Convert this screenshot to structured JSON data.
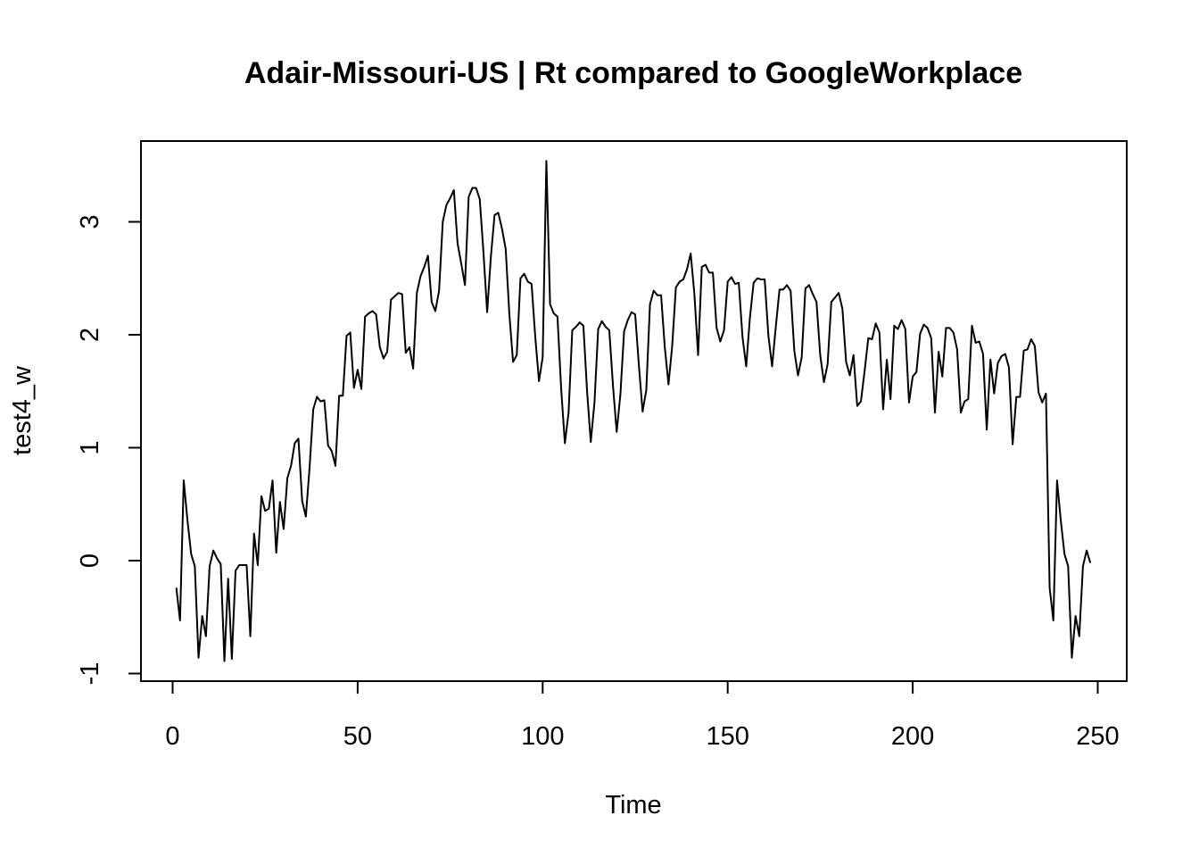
{
  "chart_data": {
    "type": "line",
    "title": "Adair-Missouri-US | Rt compared to GoogleWorkplace",
    "xlabel": "Time",
    "ylabel": "test4_w",
    "xlim": [
      1,
      248
    ],
    "ylim": [
      -0.9,
      3.55
    ],
    "x_ticks": [
      0,
      50,
      100,
      150,
      200,
      250
    ],
    "y_ticks": [
      -1,
      0,
      1,
      2,
      3
    ],
    "grid": false,
    "legend": "none",
    "series_color": "#000000",
    "series": [
      {
        "values": [
          -0.24,
          -0.53,
          0.71,
          0.36,
          0.06,
          -0.05,
          -0.86,
          -0.49,
          -0.67,
          -0.05,
          0.09,
          0.02,
          -0.03,
          -0.89,
          -0.16,
          -0.87,
          -0.09,
          -0.04,
          -0.04,
          -0.04,
          -0.67,
          0.24,
          -0.04,
          0.57,
          0.44,
          0.46,
          0.71,
          0.07,
          0.52,
          0.28,
          0.73,
          0.84,
          1.04,
          1.08,
          0.53,
          0.39,
          0.82,
          1.34,
          1.45,
          1.41,
          1.42,
          1.02,
          0.97,
          0.84,
          1.46,
          1.46,
          1.99,
          2.02,
          1.53,
          1.69,
          1.52,
          2.16,
          2.19,
          2.21,
          2.18,
          1.89,
          1.79,
          1.85,
          2.31,
          2.34,
          2.37,
          2.36,
          1.84,
          1.89,
          1.7,
          2.37,
          2.52,
          2.6,
          2.7,
          2.29,
          2.21,
          2.39,
          3.0,
          3.15,
          3.21,
          3.28,
          2.81,
          2.63,
          2.44,
          3.22,
          3.3,
          3.3,
          3.2,
          2.73,
          2.2,
          2.69,
          3.06,
          3.08,
          2.94,
          2.76,
          2.18,
          1.76,
          1.82,
          2.5,
          2.54,
          2.47,
          2.45,
          1.98,
          1.59,
          1.8,
          3.54,
          2.27,
          2.19,
          2.16,
          1.52,
          1.04,
          1.31,
          2.04,
          2.07,
          2.11,
          2.08,
          1.5,
          1.05,
          1.4,
          2.05,
          2.12,
          2.07,
          2.04,
          1.55,
          1.14,
          1.47,
          2.03,
          2.13,
          2.2,
          2.18,
          1.73,
          1.32,
          1.51,
          2.27,
          2.39,
          2.35,
          2.35,
          1.89,
          1.56,
          1.9,
          2.42,
          2.47,
          2.49,
          2.58,
          2.72,
          2.36,
          1.82,
          2.6,
          2.62,
          2.55,
          2.55,
          2.06,
          1.94,
          2.04,
          2.47,
          2.51,
          2.45,
          2.46,
          1.98,
          1.72,
          2.15,
          2.46,
          2.5,
          2.49,
          2.49,
          1.99,
          1.72,
          2.07,
          2.4,
          2.4,
          2.44,
          2.39,
          1.86,
          1.64,
          1.8,
          2.41,
          2.44,
          2.36,
          2.29,
          1.82,
          1.58,
          1.74,
          2.29,
          2.33,
          2.37,
          2.23,
          1.76,
          1.64,
          1.82,
          1.37,
          1.41,
          1.68,
          1.97,
          1.96,
          2.1,
          2.02,
          1.34,
          1.78,
          1.43,
          2.08,
          2.05,
          2.13,
          2.05,
          1.4,
          1.63,
          1.67,
          2.01,
          2.09,
          2.06,
          1.97,
          1.31,
          1.85,
          1.63,
          2.06,
          2.06,
          2.02,
          1.87,
          1.31,
          1.41,
          1.43,
          2.08,
          1.93,
          1.94,
          1.83,
          1.16,
          1.78,
          1.48,
          1.75,
          1.81,
          1.83,
          1.71,
          1.03,
          1.45,
          1.45,
          1.86,
          1.87,
          1.96,
          1.9,
          1.49,
          1.4,
          1.48,
          -0.24,
          -0.53,
          0.71,
          0.36,
          0.06,
          -0.05,
          -0.86,
          -0.49,
          -0.67,
          -0.05,
          0.09,
          -0.02
        ]
      }
    ]
  }
}
